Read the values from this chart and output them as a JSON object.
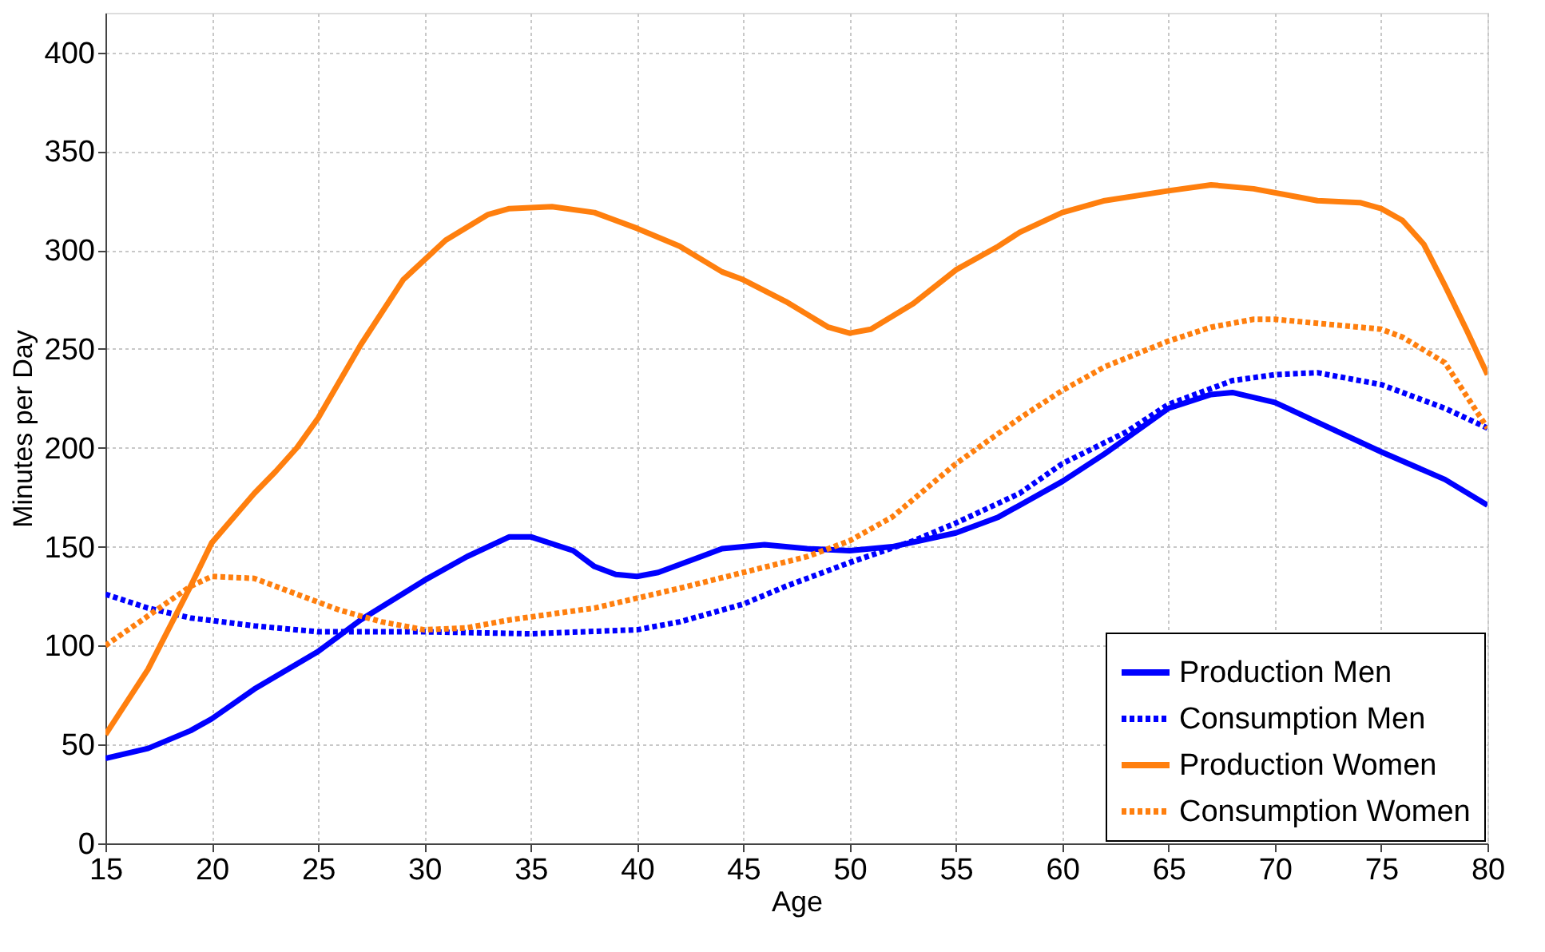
{
  "chart_data": {
    "type": "line",
    "xlabel": "Age",
    "ylabel": "Minutes per Day",
    "xlim": [
      15,
      80
    ],
    "xticks": [
      15,
      20,
      25,
      30,
      35,
      40,
      45,
      50,
      55,
      60,
      65,
      70,
      75,
      80
    ],
    "ylim": [
      0,
      420
    ],
    "yticks": [
      0,
      50,
      100,
      150,
      200,
      250,
      300,
      350,
      400
    ],
    "grid": true,
    "legend": "bottom right",
    "series": [
      {
        "name": "Production Men",
        "color": "#0000ff",
        "line_style": "solid",
        "x": [
          15,
          17,
          19,
          20,
          22,
          25,
          27,
          30,
          32,
          34,
          35,
          37,
          38,
          39,
          40,
          41,
          43,
          44,
          46,
          48,
          50,
          52,
          55,
          57,
          60,
          62,
          65,
          67,
          68,
          70,
          72,
          75,
          78,
          80
        ],
        "values": [
          43,
          48,
          57,
          63,
          78,
          97,
          113,
          133,
          145,
          155,
          155,
          148,
          140,
          136,
          135,
          137,
          145,
          149,
          151,
          149,
          148,
          150,
          157,
          165,
          183,
          197,
          220,
          227,
          228,
          223,
          213,
          198,
          184,
          171
        ]
      },
      {
        "name": "Consumption Men",
        "color": "#0000ff",
        "line_style": "dotted",
        "x": [
          15,
          17,
          19,
          22,
          25,
          30,
          35,
          40,
          42,
          45,
          47,
          50,
          53,
          55,
          58,
          60,
          63,
          65,
          68,
          70,
          72,
          75,
          78,
          80
        ],
        "values": [
          126,
          119,
          114,
          110,
          107,
          107,
          106,
          108,
          112,
          121,
          130,
          142,
          153,
          162,
          177,
          192,
          208,
          222,
          234,
          237,
          238,
          232,
          220,
          210
        ]
      },
      {
        "name": "Production Women",
        "color": "#ff7f0e",
        "line_style": "solid",
        "x": [
          15,
          17,
          19,
          20,
          22,
          23,
          24,
          25,
          27,
          29,
          31,
          33,
          34,
          36,
          38,
          40,
          42,
          44,
          45,
          47,
          49,
          50,
          51,
          53,
          55,
          57,
          58,
          60,
          62,
          65,
          67,
          69,
          71,
          72,
          74,
          75,
          76,
          77,
          78,
          79,
          80
        ],
        "values": [
          55,
          88,
          130,
          152,
          177,
          188,
          200,
          215,
          252,
          285,
          305,
          318,
          321,
          322,
          319,
          311,
          302,
          289,
          285,
          274,
          261,
          258,
          260,
          273,
          290,
          302,
          309,
          319,
          325,
          330,
          333,
          331,
          327,
          325,
          324,
          321,
          315,
          303,
          282,
          260,
          237
        ]
      },
      {
        "name": "Consumption Women",
        "color": "#ff7f0e",
        "line_style": "dotted",
        "x": [
          15,
          17,
          19,
          20,
          22,
          24,
          26,
          28,
          30,
          32,
          34,
          36,
          38,
          40,
          42,
          45,
          48,
          50,
          52,
          55,
          58,
          60,
          62,
          65,
          67,
          69,
          70,
          72,
          75,
          76,
          78,
          80
        ],
        "values": [
          100,
          115,
          130,
          135,
          134,
          126,
          118,
          112,
          108,
          109,
          113,
          116,
          119,
          124,
          129,
          137,
          145,
          153,
          165,
          192,
          215,
          229,
          241,
          254,
          261,
          265,
          265,
          263,
          260,
          256,
          243,
          210
        ]
      }
    ]
  }
}
